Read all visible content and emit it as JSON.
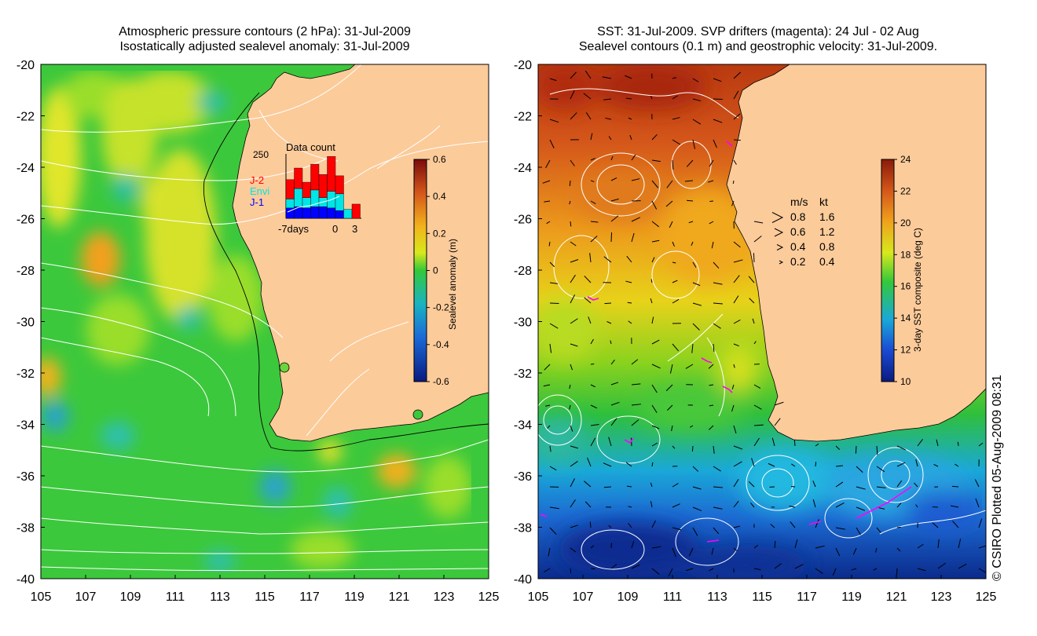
{
  "left_panel": {
    "title_line1": "Atmospheric pressure contours (2 hPa): 31-Jul-2009",
    "title_line2": "Isostatically adjusted sealevel anomaly: 31-Jul-2009",
    "lat_ticks": [
      "-20",
      "-22",
      "-24",
      "-26",
      "-28",
      "-30",
      "-32",
      "-34",
      "-36",
      "-38",
      "-40"
    ],
    "lon_ticks": [
      "105",
      "107",
      "109",
      "111",
      "113",
      "115",
      "117",
      "119",
      "121",
      "123",
      "125"
    ],
    "colorbar": {
      "label": "Sealevel anomaly (m)",
      "ticks": [
        "0.6",
        "0.4",
        "0.2",
        "0",
        "-0.2",
        "-0.4",
        "-0.6"
      ],
      "range": [
        -0.6,
        0.6
      ]
    },
    "data_count": {
      "title": "Data count",
      "ymax_label": "250",
      "legend": [
        "J-2",
        "Envi",
        "J-1"
      ],
      "x_labels": [
        "-7days",
        "0",
        "3"
      ],
      "colors": {
        "J-2": "#ff0000",
        "Envi": "#00e5e5",
        "J-1": "#0000ff"
      },
      "bars": [
        {
          "J-1": 40,
          "Envi": 35,
          "J-2": 75
        },
        {
          "J-1": 45,
          "Envi": 70,
          "J-2": 80
        },
        {
          "J-1": 40,
          "Envi": 40,
          "J-2": 60
        },
        {
          "J-1": 45,
          "Envi": 65,
          "J-2": 100
        },
        {
          "J-1": 45,
          "Envi": 35,
          "J-2": 90
        },
        {
          "J-1": 40,
          "Envi": 65,
          "J-2": 135
        },
        {
          "J-1": 30,
          "Envi": 65,
          "J-2": 70
        },
        {
          "J-1": 0,
          "Envi": 35,
          "J-2": 0
        },
        {
          "J-1": 0,
          "Envi": 0,
          "J-2": 55
        }
      ]
    }
  },
  "right_panel": {
    "title_line1": "SST: 31-Jul-2009. SVP drifters (magenta): 24 Jul - 02 Aug",
    "title_line2": "Sealevel contours (0.1 m) and geostrophic velocity: 31-Jul-2009.",
    "lat_ticks": [
      "-20",
      "-22",
      "-24",
      "-26",
      "-28",
      "-30",
      "-32",
      "-34",
      "-36",
      "-38",
      "-40"
    ],
    "lon_ticks": [
      "105",
      "107",
      "109",
      "111",
      "113",
      "115",
      "117",
      "119",
      "121",
      "123",
      "125"
    ],
    "colorbar": {
      "label": "3-day SST composite (deg C)",
      "ticks": [
        "24",
        "22",
        "20",
        "18",
        "16",
        "14",
        "12",
        "10"
      ],
      "range": [
        10,
        24
      ]
    },
    "velocity_legend": {
      "header_ms": "m/s",
      "header_kt": "kt",
      "rows": [
        {
          "ms": "0.8",
          "kt": "1.6"
        },
        {
          "ms": "0.6",
          "kt": "1.2"
        },
        {
          "ms": "0.4",
          "kt": "0.8"
        },
        {
          "ms": "0.2",
          "kt": "0.4"
        }
      ]
    }
  },
  "credit": "© CSIRO Plotted 05-Aug-2009 08:31",
  "colors": {
    "land": "#fccb9a",
    "ocean_green": "#3cc83c",
    "warm": "#c84a14",
    "cold": "#0a3ca0"
  }
}
